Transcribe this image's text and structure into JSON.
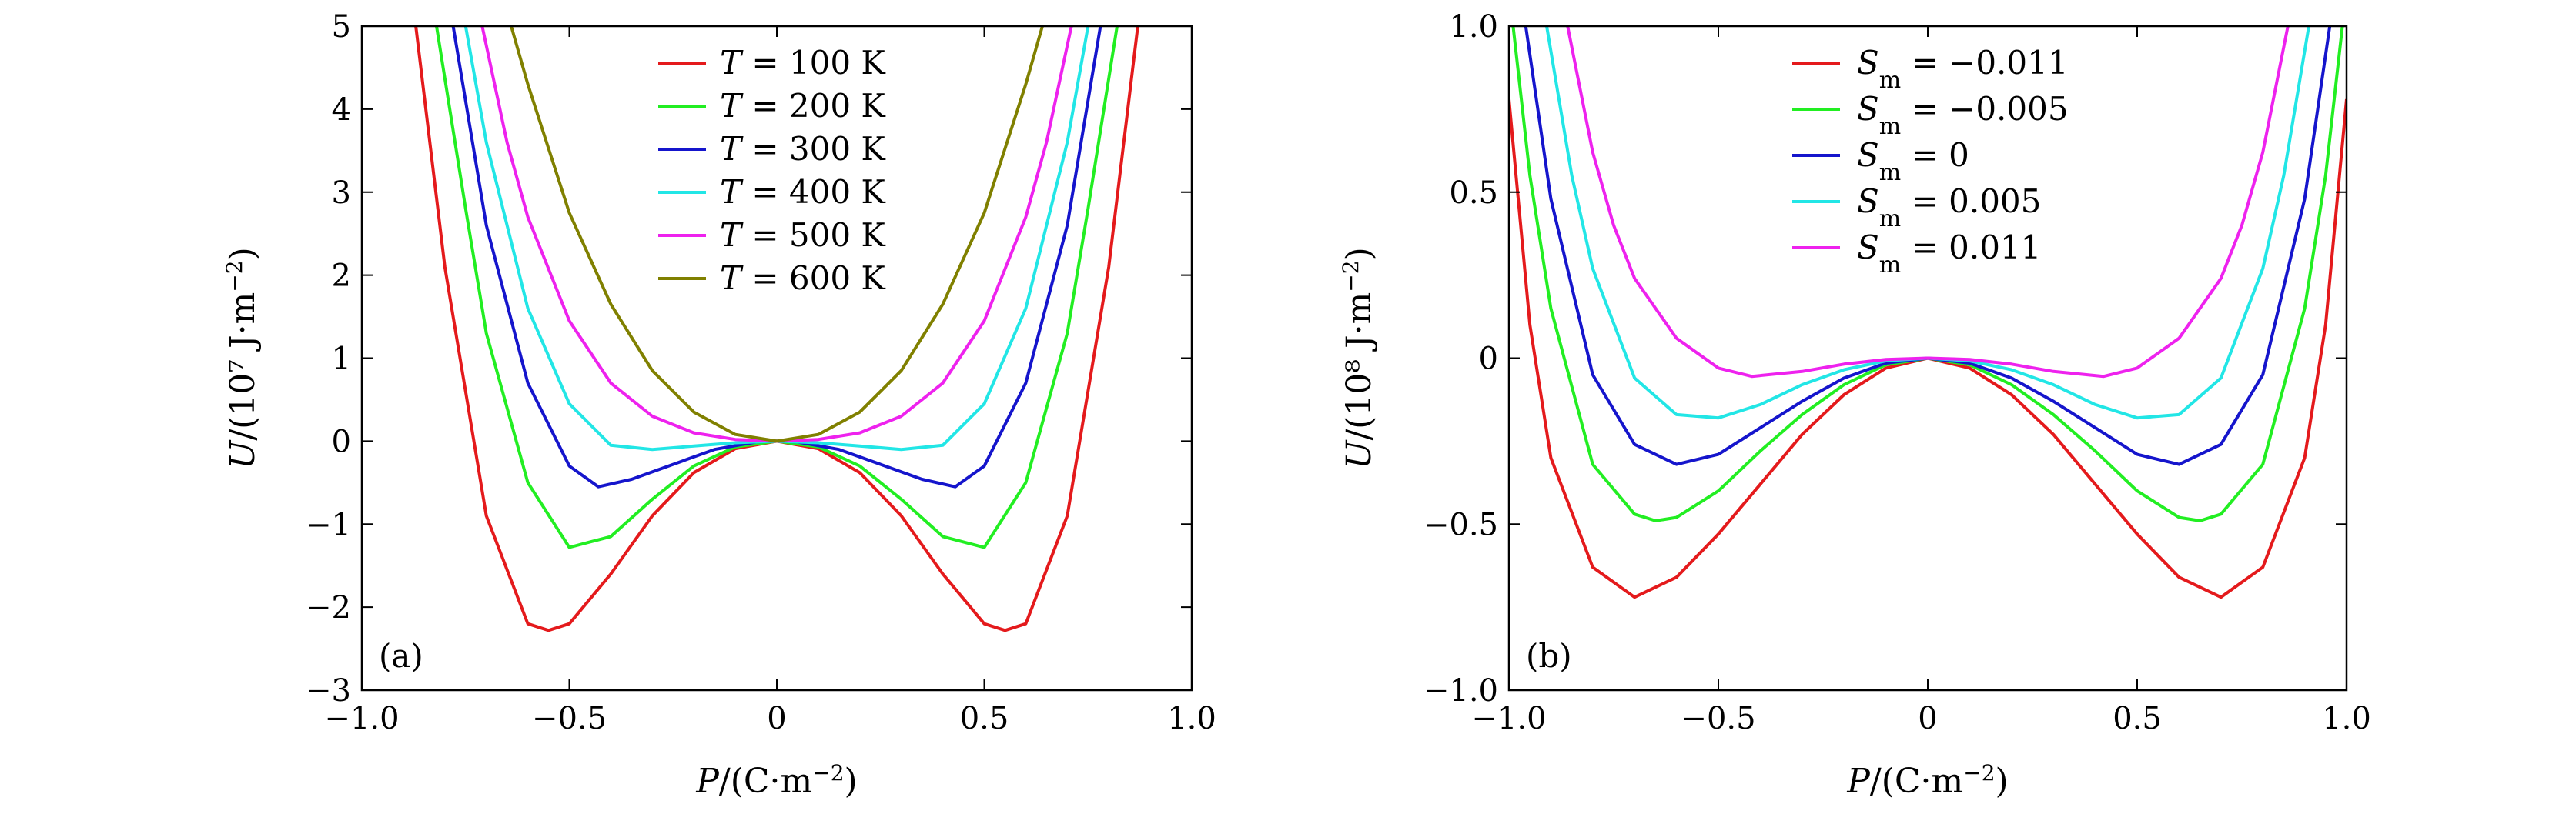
{
  "chart_data": [
    {
      "type": "line",
      "panel_label": "(a)",
      "xlabel": "P/(C·m⁻²)",
      "ylabel": "U/(10⁷ J·m⁻²)",
      "xlim": [
        -1.0,
        1.0
      ],
      "ylim": [
        -3,
        5
      ],
      "xticks": [
        -1.0,
        -0.5,
        0,
        0.5,
        1.0
      ],
      "xtick_labels": [
        "−1.0",
        "−0.5",
        "0",
        "0.5",
        "1.0"
      ],
      "yticks": [
        -3,
        -2,
        -1,
        0,
        1,
        2,
        3,
        4,
        5
      ],
      "ytick_labels": [
        "−3",
        "−2",
        "−1",
        "0",
        "1",
        "2",
        "3",
        "4",
        "5"
      ],
      "grid": false,
      "legend_position": "top-center",
      "series": [
        {
          "name": "T = 100 K",
          "color": "#e41a1c",
          "x": [
            -0.87,
            -0.8,
            -0.7,
            -0.6,
            -0.55,
            -0.5,
            -0.4,
            -0.3,
            -0.2,
            -0.1,
            0,
            0.1,
            0.2,
            0.3,
            0.4,
            0.5,
            0.55,
            0.6,
            0.7,
            0.8,
            0.87
          ],
          "y": [
            5.0,
            2.1,
            -0.9,
            -2.2,
            -2.28,
            -2.2,
            -1.6,
            -0.9,
            -0.38,
            -0.09,
            0,
            -0.09,
            -0.38,
            -0.9,
            -1.6,
            -2.2,
            -2.28,
            -2.2,
            -0.9,
            2.1,
            5.0
          ]
        },
        {
          "name": "T = 200 K",
          "color": "#22ee22",
          "x": [
            -0.82,
            -0.75,
            -0.7,
            -0.6,
            -0.5,
            -0.4,
            -0.3,
            -0.2,
            -0.1,
            0,
            0.1,
            0.2,
            0.3,
            0.4,
            0.5,
            0.6,
            0.7,
            0.75,
            0.82
          ],
          "y": [
            5.0,
            2.8,
            1.3,
            -0.5,
            -1.28,
            -1.15,
            -0.7,
            -0.3,
            -0.07,
            0,
            -0.07,
            -0.3,
            -0.7,
            -1.15,
            -1.28,
            -0.5,
            1.3,
            2.8,
            5.0
          ]
        },
        {
          "name": "T = 300 K",
          "color": "#1515cc",
          "x": [
            -0.78,
            -0.7,
            -0.6,
            -0.5,
            -0.43,
            -0.35,
            -0.25,
            -0.15,
            -0.05,
            0,
            0.05,
            0.15,
            0.25,
            0.35,
            0.43,
            0.5,
            0.6,
            0.7,
            0.78
          ],
          "y": [
            5.0,
            2.6,
            0.7,
            -0.3,
            -0.55,
            -0.46,
            -0.28,
            -0.1,
            -0.01,
            0,
            -0.01,
            -0.1,
            -0.28,
            -0.46,
            -0.55,
            -0.3,
            0.7,
            2.6,
            5.0
          ]
        },
        {
          "name": "T = 400 K",
          "color": "#22e6e6",
          "x": [
            -0.75,
            -0.7,
            -0.6,
            -0.5,
            -0.4,
            -0.3,
            -0.2,
            -0.1,
            0,
            0.1,
            0.2,
            0.3,
            0.4,
            0.5,
            0.6,
            0.7,
            0.75
          ],
          "y": [
            5.0,
            3.6,
            1.6,
            0.45,
            -0.05,
            -0.1,
            -0.06,
            -0.02,
            0,
            -0.02,
            -0.06,
            -0.1,
            -0.05,
            0.45,
            1.6,
            3.6,
            5.0
          ]
        },
        {
          "name": "T = 500 K",
          "color": "#ee22ee",
          "x": [
            -0.71,
            -0.65,
            -0.6,
            -0.5,
            -0.4,
            -0.3,
            -0.2,
            -0.1,
            0,
            0.1,
            0.2,
            0.3,
            0.4,
            0.5,
            0.6,
            0.65,
            0.71
          ],
          "y": [
            5.0,
            3.6,
            2.7,
            1.45,
            0.7,
            0.3,
            0.1,
            0.02,
            0,
            0.02,
            0.1,
            0.3,
            0.7,
            1.45,
            2.7,
            3.6,
            5.0
          ]
        },
        {
          "name": "T = 600 K",
          "color": "#808000",
          "x": [
            -0.64,
            -0.6,
            -0.5,
            -0.4,
            -0.3,
            -0.2,
            -0.1,
            0,
            0.1,
            0.2,
            0.3,
            0.4,
            0.5,
            0.6,
            0.64
          ],
          "y": [
            5.0,
            4.3,
            2.75,
            1.65,
            0.85,
            0.35,
            0.08,
            0,
            0.08,
            0.35,
            0.85,
            1.65,
            2.75,
            4.3,
            5.0
          ]
        }
      ]
    },
    {
      "type": "line",
      "panel_label": "(b)",
      "xlabel": "P/(C·m⁻²)",
      "ylabel": "U/(10⁸ J·m⁻²)",
      "xlim": [
        -1.0,
        1.0
      ],
      "ylim": [
        -1.0,
        1.0
      ],
      "xticks": [
        -1.0,
        -0.5,
        0,
        0.5,
        1.0
      ],
      "xtick_labels": [
        "−1.0",
        "−0.5",
        "0",
        "0.5",
        "1.0"
      ],
      "yticks": [
        -1.0,
        -0.5,
        0,
        0.5,
        1.0
      ],
      "ytick_labels": [
        "−1.0",
        "−0.5",
        "0",
        "0.5",
        "1.0"
      ],
      "grid": false,
      "legend_position": "top-center",
      "series": [
        {
          "name": "S_m = −0.011",
          "legend_value": "−0.011",
          "color": "#e41a1c",
          "x": [
            -1.0,
            -0.95,
            -0.9,
            -0.8,
            -0.7,
            -0.6,
            -0.5,
            -0.4,
            -0.3,
            -0.2,
            -0.1,
            0,
            0.1,
            0.2,
            0.3,
            0.4,
            0.5,
            0.6,
            0.7,
            0.8,
            0.9,
            0.95,
            1.0
          ],
          "y": [
            0.78,
            0.1,
            -0.3,
            -0.63,
            -0.72,
            -0.66,
            -0.53,
            -0.38,
            -0.23,
            -0.11,
            -0.03,
            0,
            -0.03,
            -0.11,
            -0.23,
            -0.38,
            -0.53,
            -0.66,
            -0.72,
            -0.63,
            -0.3,
            0.1,
            0.78
          ]
        },
        {
          "name": "S_m = −0.005",
          "legend_value": "−0.005",
          "color": "#22ee22",
          "x": [
            -0.99,
            -0.95,
            -0.9,
            -0.8,
            -0.7,
            -0.65,
            -0.6,
            -0.5,
            -0.4,
            -0.3,
            -0.2,
            -0.1,
            0,
            0.1,
            0.2,
            0.3,
            0.4,
            0.5,
            0.6,
            0.65,
            0.7,
            0.8,
            0.9,
            0.95,
            0.99
          ],
          "y": [
            1.0,
            0.55,
            0.15,
            -0.32,
            -0.47,
            -0.49,
            -0.48,
            -0.4,
            -0.28,
            -0.17,
            -0.08,
            -0.02,
            0,
            -0.02,
            -0.08,
            -0.17,
            -0.28,
            -0.4,
            -0.48,
            -0.49,
            -0.47,
            -0.32,
            0.15,
            0.55,
            1.0
          ]
        },
        {
          "name": "S_m = 0",
          "legend_value": "0",
          "color": "#1515cc",
          "x": [
            -0.96,
            -0.9,
            -0.8,
            -0.7,
            -0.6,
            -0.5,
            -0.4,
            -0.3,
            -0.2,
            -0.1,
            0,
            0.1,
            0.2,
            0.3,
            0.4,
            0.5,
            0.6,
            0.7,
            0.8,
            0.9,
            0.96
          ],
          "y": [
            1.0,
            0.48,
            -0.05,
            -0.26,
            -0.32,
            -0.29,
            -0.21,
            -0.13,
            -0.06,
            -0.015,
            0,
            -0.015,
            -0.06,
            -0.13,
            -0.21,
            -0.29,
            -0.32,
            -0.26,
            -0.05,
            0.48,
            1.0
          ]
        },
        {
          "name": "S_m = 0.005",
          "legend_value": "0.005",
          "color": "#22e6e6",
          "x": [
            -0.91,
            -0.85,
            -0.8,
            -0.7,
            -0.6,
            -0.5,
            -0.4,
            -0.3,
            -0.2,
            -0.1,
            0,
            0.1,
            0.2,
            0.3,
            0.4,
            0.5,
            0.6,
            0.7,
            0.8,
            0.85,
            0.91
          ],
          "y": [
            1.0,
            0.55,
            0.27,
            -0.06,
            -0.17,
            -0.18,
            -0.14,
            -0.08,
            -0.035,
            -0.008,
            0,
            -0.008,
            -0.035,
            -0.08,
            -0.14,
            -0.18,
            -0.17,
            -0.06,
            0.27,
            0.55,
            1.0
          ]
        },
        {
          "name": "S_m = 0.011",
          "legend_value": "0.011",
          "color": "#ee22ee",
          "x": [
            -0.86,
            -0.8,
            -0.75,
            -0.7,
            -0.6,
            -0.5,
            -0.42,
            -0.3,
            -0.2,
            -0.1,
            0,
            0.1,
            0.2,
            0.3,
            0.42,
            0.5,
            0.6,
            0.7,
            0.75,
            0.8,
            0.86
          ],
          "y": [
            1.0,
            0.62,
            0.4,
            0.24,
            0.06,
            -0.03,
            -0.055,
            -0.04,
            -0.018,
            -0.004,
            0,
            -0.004,
            -0.018,
            -0.04,
            -0.055,
            -0.03,
            0.06,
            0.24,
            0.4,
            0.62,
            1.0
          ]
        }
      ]
    }
  ]
}
